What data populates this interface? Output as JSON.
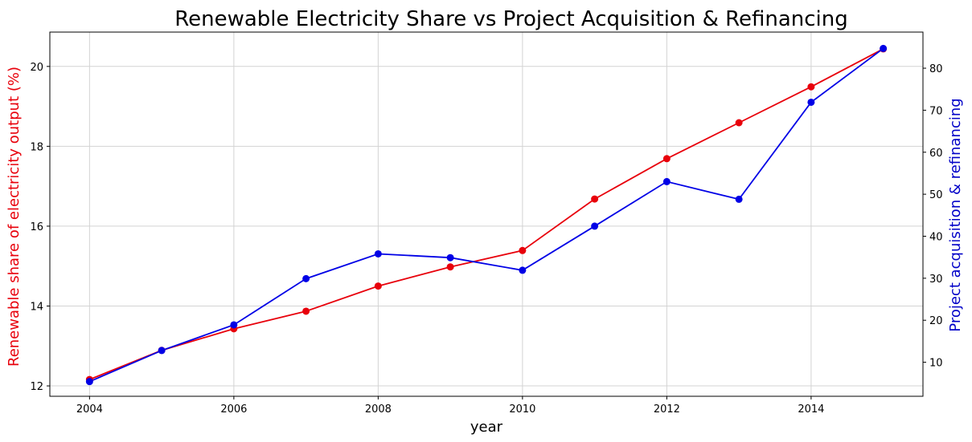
{
  "chart_data": {
    "type": "line",
    "title": "Renewable Electricity Share vs Project Acquisition & Refinancing",
    "xlabel": "year",
    "ylabel_left": "Renewable share of electricity output (%)",
    "ylabel_right": "Project acquisition & refinancing",
    "x": [
      2004,
      2005,
      2006,
      2007,
      2008,
      2009,
      2010,
      2011,
      2012,
      2013,
      2014,
      2015
    ],
    "xlim": [
      2003.45,
      2015.55
    ],
    "xticks": [
      2004,
      2006,
      2008,
      2010,
      2012,
      2014
    ],
    "ylim_left": [
      11.74,
      20.86
    ],
    "yticks_left": [
      12,
      14,
      16,
      18,
      20
    ],
    "ylim_right": [
      1.9,
      88.6
    ],
    "yticks_right": [
      10,
      20,
      30,
      40,
      50,
      60,
      70,
      80
    ],
    "grid": true,
    "series": [
      {
        "axis": "left",
        "color": "#e8000b",
        "values": [
          12.16,
          12.89,
          13.43,
          13.87,
          14.5,
          14.98,
          15.39,
          16.68,
          17.69,
          18.59,
          19.49,
          20.44
        ]
      },
      {
        "axis": "right",
        "color": "#0000e6",
        "values": [
          5.4,
          12.8,
          18.9,
          29.9,
          35.8,
          34.9,
          31.9,
          42.4,
          53.0,
          48.8,
          71.9,
          84.7
        ]
      }
    ],
    "colors": {
      "left_axis_label": "#e8000b",
      "right_axis_label": "#0000c8",
      "grid": "#d3d3d3"
    }
  }
}
